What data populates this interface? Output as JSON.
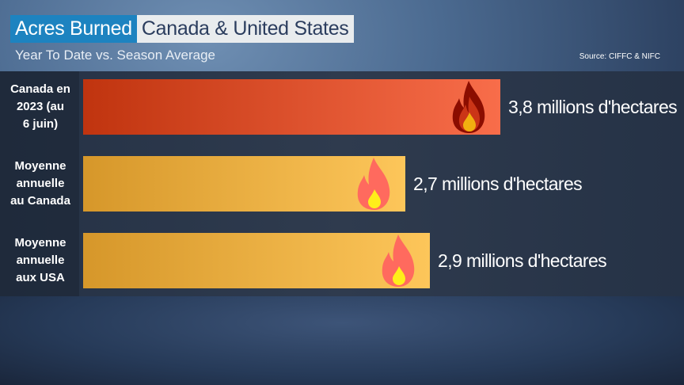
{
  "header": {
    "title_highlight": "Acres Burned",
    "title_main": "Canada & United States",
    "subtitle": "Year To Date vs. Season Average",
    "source": "Source: CIFFC & NIFC"
  },
  "chart_data": {
    "type": "bar",
    "orientation": "horizontal",
    "categories": [
      "Canada en 2023 (au 6 juin)",
      "Moyenne annuelle au Canada",
      "Moyenne annuelle aux USA"
    ],
    "category_lines": [
      [
        "Canada en",
        "2023 (au",
        "6 juin)"
      ],
      [
        "Moyenne",
        "annuelle",
        "au Canada"
      ],
      [
        "Moyenne",
        "annuelle",
        "aux USA"
      ]
    ],
    "values": [
      3.8,
      2.7,
      2.9
    ],
    "unit": "millions d'hectares",
    "data_labels": [
      "3,8 millions d'hectares",
      "2,7 millions d'hectares",
      "2,9 millions d'hectares"
    ],
    "colors": [
      [
        "#c0340f",
        "#f86d4a"
      ],
      [
        "#d6972a",
        "#fdc65a"
      ],
      [
        "#d6972a",
        "#fdc65a"
      ]
    ],
    "flame_colors": [
      [
        "#8b0d00",
        "#d23a1a",
        "#f2b010"
      ],
      [
        "#ff6a5e",
        "#ff6a5e",
        "#ffee1a"
      ],
      [
        "#ff6a5e",
        "#ff6a5e",
        "#ffee1a"
      ]
    ],
    "icon": "flame-icon",
    "grid": false,
    "legend": "none"
  }
}
